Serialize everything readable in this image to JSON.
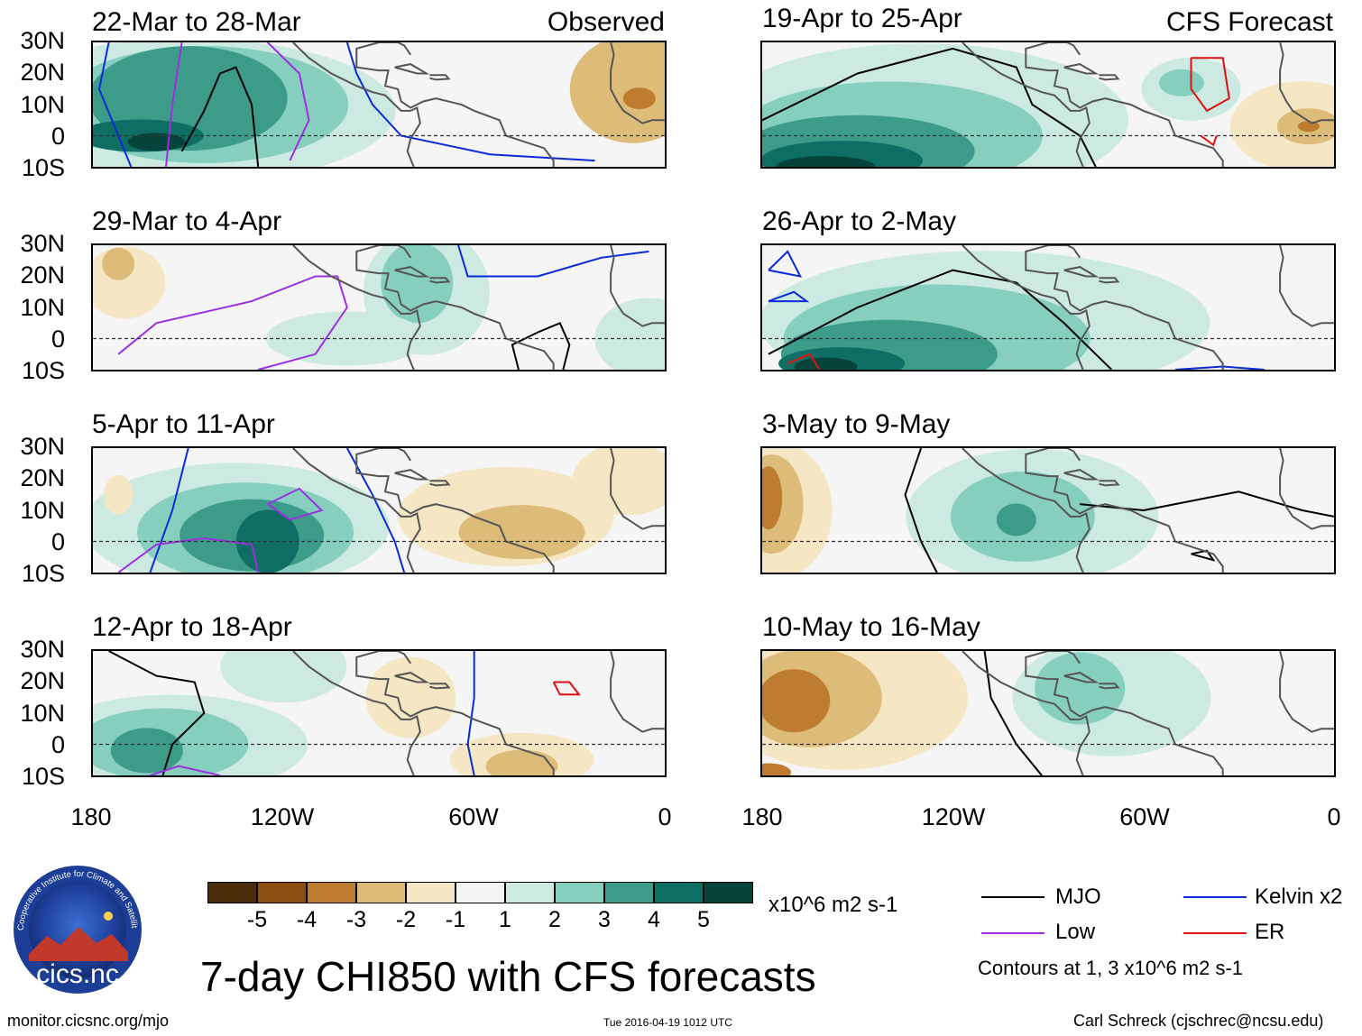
{
  "header": {
    "observed_label": "Observed",
    "forecast_label": "CFS Forecast"
  },
  "panels": {
    "obs": [
      {
        "title": "22-Mar to 28-Mar"
      },
      {
        "title": "29-Mar to 4-Apr"
      },
      {
        "title": "5-Apr to 11-Apr"
      },
      {
        "title": "12-Apr to 18-Apr"
      }
    ],
    "fcst": [
      {
        "title": "19-Apr to 25-Apr"
      },
      {
        "title": "26-Apr to 2-May"
      },
      {
        "title": "3-May to 9-May"
      },
      {
        "title": "10-May to 16-May"
      }
    ]
  },
  "axes": {
    "lat_labels": [
      "30N",
      "20N",
      "10N",
      "0",
      "10S"
    ],
    "lon_labels": [
      "180",
      "120W",
      "60W",
      "0"
    ]
  },
  "colorbar": {
    "labels": [
      "-5",
      "-4",
      "-3",
      "-2",
      "-1",
      "1",
      "2",
      "3",
      "4",
      "5"
    ],
    "colors": [
      "#4a2c0a",
      "#8a4e10",
      "#bd7c30",
      "#ddbb78",
      "#f5e6c4",
      "#f4f4f4",
      "#cdeae2",
      "#86cfbf",
      "#3d9b8a",
      "#0f6e64",
      "#06433b"
    ],
    "units": "x10^6 m2 s-1"
  },
  "legend": {
    "items": [
      {
        "label": "MJO",
        "color": "#000000"
      },
      {
        "label": "Kelvin x2",
        "color": "#0a2bd8"
      },
      {
        "label": "Low",
        "color": "#9b30e0"
      },
      {
        "label": "ER",
        "color": "#e01010"
      }
    ],
    "contours_note": "Contours at 1, 3 x10^6 m2 s-1"
  },
  "title": "7-day CHI850 with CFS forecasts",
  "footer": {
    "url": "monitor.cicsnc.org/mjo",
    "timestamp": "Tue 2016-04-19 1012 UTC",
    "credit": "Carl Schreck (cjschrec@ncsu.edu)"
  },
  "logo": {
    "ring_text": "Cooperative Institute for Climate and Satellites",
    "name": "cics.nc"
  }
}
